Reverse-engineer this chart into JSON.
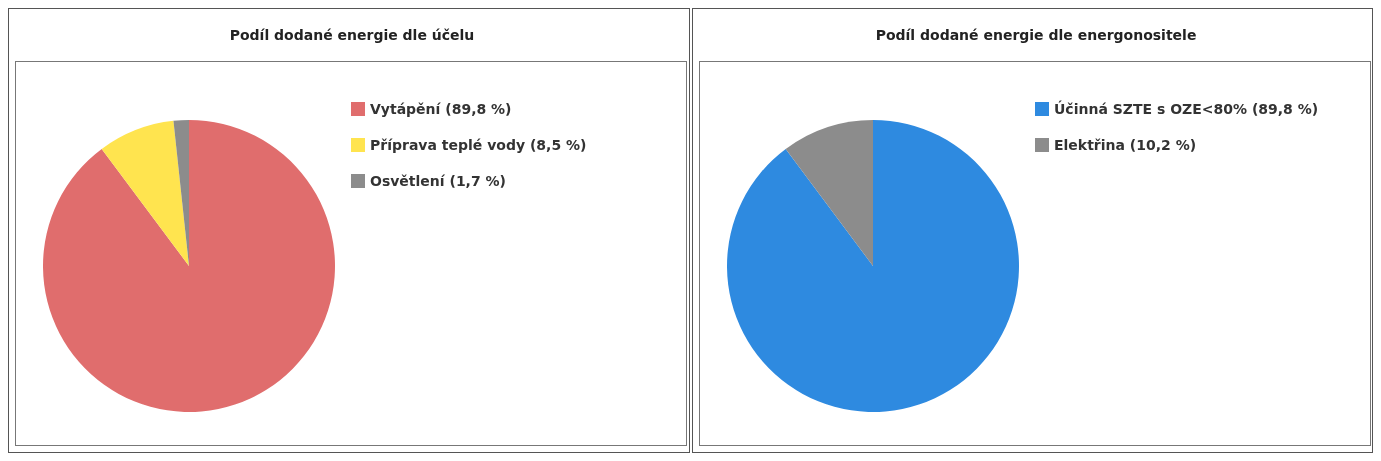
{
  "chart_data": [
    {
      "type": "pie",
      "title": "Podíl dodané energie dle účelu",
      "categories": [
        "Vytápění (89,8 %)",
        "Příprava teplé vody (8,5 %)",
        "Osvětlení (1,7 %)"
      ],
      "values": [
        89.8,
        8.5,
        1.7
      ],
      "colors": [
        "#e06d6d",
        "#ffe44f",
        "#8c8c8c"
      ],
      "legend": "right"
    },
    {
      "type": "pie",
      "title": "Podíl dodané energie dle energonositele",
      "categories": [
        "Účinná SZTE s OZE<80% (89,8 %)",
        "Elektřina (10,2 %)"
      ],
      "values": [
        89.8,
        10.2
      ],
      "colors": [
        "#2e8ae0",
        "#8c8c8c"
      ],
      "legend": "right"
    }
  ]
}
